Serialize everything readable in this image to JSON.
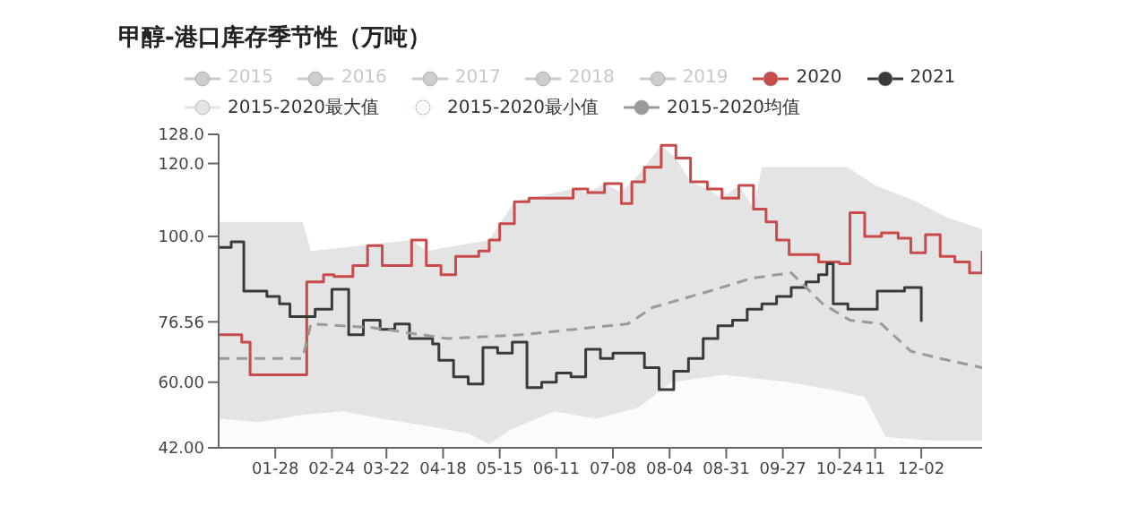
{
  "chart_data": {
    "type": "step",
    "title": "甲醇-港口库存季节性（万吨）",
    "legend": "top",
    "xlim": [
      "--01-01",
      "--12-31"
    ],
    "xticks": [
      {
        "value": "--01-28",
        "label": "01-28"
      },
      {
        "value": "--02-24",
        "label": "02-24"
      },
      {
        "value": "--03-22",
        "label": "03-22"
      },
      {
        "value": "--04-18",
        "label": "04-18"
      },
      {
        "value": "--05-15",
        "label": "05-15"
      },
      {
        "value": "--06-11",
        "label": "06-11"
      },
      {
        "value": "--07-08",
        "label": "07-08"
      },
      {
        "value": "--08-04",
        "label": "08-04"
      },
      {
        "value": "--08-31",
        "label": "08-31"
      },
      {
        "value": "--09-27",
        "label": "09-27"
      },
      {
        "value": "--10-24",
        "label": "10-24"
      },
      {
        "value": "--11-10",
        "label": "11"
      },
      {
        "value": "--12-02",
        "label": "12-02"
      }
    ],
    "ylim": [
      42,
      128
    ],
    "yticks": [
      {
        "value": 42,
        "label": "42.00"
      },
      {
        "value": 60,
        "label": "60.00"
      },
      {
        "value": 76.56,
        "label": "76.56"
      },
      {
        "value": 100,
        "label": "100.0"
      },
      {
        "value": 120,
        "label": "120.0"
      },
      {
        "value": 128,
        "label": "128.0"
      }
    ],
    "series": [
      {
        "name": "2015",
        "color": "#cccccc"
      },
      {
        "name": "2016",
        "color": "#cccccc"
      },
      {
        "name": "2017",
        "color": "#cccccc"
      },
      {
        "name": "2018",
        "color": "#cccccc"
      },
      {
        "name": "2019",
        "color": "#cccccc"
      },
      {
        "name": "2020",
        "color": "#c94a4a",
        "x": [
          "--01-01",
          "--01-12",
          "--01-16",
          "--02-12",
          "--02-20",
          "--02-25",
          "--03-06",
          "--03-13",
          "--03-20",
          "--04-03",
          "--04-10",
          "--04-17",
          "--04-24",
          "--05-05",
          "--05-10",
          "--05-15",
          "--05-22",
          "--05-29",
          "--06-19",
          "--06-26",
          "--07-04",
          "--07-12",
          "--07-17",
          "--07-23",
          "--07-31",
          "--08-07",
          "--08-14",
          "--08-22",
          "--08-29",
          "--09-06",
          "--09-13",
          "--09-19",
          "--09-24",
          "--09-30",
          "--10-14",
          "--10-24",
          "--10-29",
          "--11-05",
          "--11-13",
          "--11-21",
          "--11-27",
          "--12-04",
          "--12-11",
          "--12-18",
          "--12-25",
          "--12-31"
        ],
        "values": [
          73,
          71,
          62,
          87.5,
          89.5,
          89,
          92,
          97.5,
          92,
          99,
          92,
          89.5,
          94.5,
          96,
          99,
          103.5,
          109.5,
          110.5,
          113,
          112,
          114.5,
          109,
          115,
          119,
          125,
          121.5,
          115,
          113,
          110.5,
          114,
          107.5,
          104,
          99,
          95,
          93,
          92.5,
          106.5,
          100,
          101,
          99.5,
          95.5,
          100.5,
          94.5,
          93,
          90,
          96
        ]
      },
      {
        "name": "2021",
        "color": "#3a3a3a",
        "x": [
          "--01-01",
          "--01-07",
          "--01-13",
          "--01-24",
          "--01-30",
          "--02-04",
          "--02-16",
          "--02-24",
          "--03-04",
          "--03-11",
          "--03-19",
          "--03-26",
          "--04-02",
          "--04-13",
          "--04-16",
          "--04-23",
          "--04-30",
          "--05-07",
          "--05-14",
          "--05-21",
          "--05-28",
          "--06-04",
          "--06-11",
          "--06-18",
          "--06-25",
          "--07-02",
          "--07-08",
          "--07-23",
          "--07-30",
          "--08-06",
          "--08-13",
          "--08-20",
          "--08-27",
          "--09-03",
          "--09-10",
          "--09-17",
          "--09-24",
          "--10-01",
          "--10-08",
          "--10-14",
          "--10-18",
          "--10-21",
          "--10-28",
          "--11-11",
          "--11-24",
          "--12-02"
        ],
        "values": [
          97,
          98.5,
          85,
          83.5,
          81.5,
          78,
          80,
          85.5,
          73,
          77,
          74.5,
          76,
          72,
          70.5,
          66,
          61.5,
          59.5,
          69.5,
          68,
          71,
          58.5,
          60,
          62.5,
          61.5,
          69,
          66.5,
          68,
          64,
          58,
          63,
          66.5,
          72,
          75.5,
          77,
          80,
          81.5,
          83.5,
          86,
          87.5,
          89.5,
          92.5,
          81.5,
          80,
          85,
          86,
          76.56
        ]
      },
      {
        "name": "2015-2020最大值",
        "type": "area",
        "color": "#e4e4e4",
        "x": [
          "--01-01",
          "--02-10",
          "--02-14",
          "--04-03",
          "--04-10",
          "--05-10",
          "--05-15",
          "--05-22",
          "--05-29",
          "--06-19",
          "--06-26",
          "--07-04",
          "--07-12",
          "--07-17",
          "--07-23",
          "--07-31",
          "--08-07",
          "--08-14",
          "--08-22",
          "--08-29",
          "--09-06",
          "--09-13",
          "--09-17",
          "--10-28",
          "--11-10",
          "--11-28",
          "--12-15",
          "--12-31"
        ],
        "values": [
          104,
          104,
          96,
          99,
          96,
          99,
          103.5,
          109.5,
          110.5,
          113,
          112,
          114.5,
          112,
          115,
          119,
          125,
          121.5,
          115,
          113,
          110.5,
          114,
          108,
          119,
          119,
          114,
          110,
          105,
          102
        ]
      },
      {
        "name": "2015-2020最小值",
        "type": "area",
        "color": "#fbfbfb",
        "x": [
          "--01-01",
          "--01-20",
          "--02-10",
          "--03-01",
          "--03-20",
          "--04-10",
          "--04-30",
          "--05-10",
          "--05-20",
          "--06-10",
          "--06-30",
          "--07-20",
          "--08-05",
          "--08-30",
          "--09-30",
          "--10-20",
          "--11-05",
          "--11-15",
          "--12-05",
          "--12-31"
        ],
        "values": [
          50,
          49,
          51,
          52,
          50,
          48,
          46,
          43,
          47,
          52,
          50,
          53,
          60,
          62,
          60,
          58,
          56,
          45,
          44,
          44
        ]
      },
      {
        "name": "2015-2020均值",
        "type": "line",
        "line_style": "dashed",
        "color": "#9a9a9a",
        "x": [
          "--01-01",
          "--02-10",
          "--02-14",
          "--03-15",
          "--04-20",
          "--05-25",
          "--07-15",
          "--07-27",
          "--08-26",
          "--09-12",
          "--10-01",
          "--10-16",
          "--10-29",
          "--11-13",
          "--11-27",
          "--12-11",
          "--12-31"
        ],
        "values": [
          66.5,
          66.5,
          76,
          75,
          72,
          73,
          76,
          80.5,
          85.5,
          88.5,
          90,
          81.5,
          77,
          76,
          68.5,
          66.5,
          64
        ]
      }
    ]
  }
}
